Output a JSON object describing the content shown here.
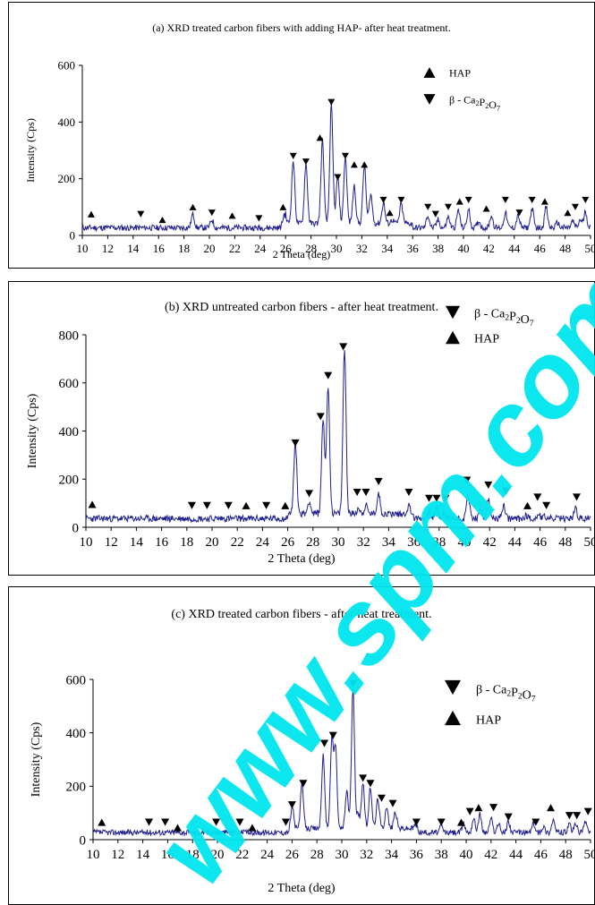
{
  "chart_data": [
    {
      "type": "line",
      "title": "(a) XRD treated carbon fibers with adding HAP- after heat treatment.",
      "xlabel": "2 Theta (deg)",
      "ylabel": "Intensity (Cps)",
      "xlim": [
        10,
        50
      ],
      "ylim": [
        0,
        600
      ],
      "xticks": [
        "10",
        "12",
        "14",
        "16",
        "18",
        "20",
        "22",
        "24",
        "26",
        "28",
        "30",
        "32",
        "34",
        "36",
        "38",
        "40",
        "42",
        "44",
        "46",
        "48",
        "50"
      ],
      "yticks": [
        "0",
        "200",
        "400",
        "600"
      ],
      "legend": {
        "placement": "top-right",
        "entries": [
          {
            "marker": "up",
            "label": "HAP"
          },
          {
            "marker": "down",
            "label": "β - Ca₂P₂O₇"
          }
        ]
      },
      "color": "#1f1f8f",
      "peaks": [
        [
          18.7,
          75
        ],
        [
          20.2,
          55
        ],
        [
          25.9,
          75
        ],
        [
          26.6,
          250
        ],
        [
          27.6,
          240
        ],
        [
          28.9,
          320
        ],
        [
          29.6,
          445
        ],
        [
          30.1,
          190
        ],
        [
          30.7,
          260
        ],
        [
          31.4,
          160
        ],
        [
          32.2,
          230
        ],
        [
          32.7,
          130
        ],
        [
          33.7,
          100
        ],
        [
          34.4,
          40
        ],
        [
          35.1,
          95
        ],
        [
          37.2,
          70
        ],
        [
          38.0,
          55
        ],
        [
          38.8,
          65
        ],
        [
          39.6,
          90
        ],
        [
          40.4,
          90
        ],
        [
          41.2,
          50
        ],
        [
          42.2,
          70
        ],
        [
          43.3,
          80
        ],
        [
          44.3,
          70
        ],
        [
          45.4,
          95
        ],
        [
          46.5,
          100
        ],
        [
          47.4,
          45
        ],
        [
          48.6,
          50
        ],
        [
          49.2,
          55
        ],
        [
          49.6,
          85
        ]
      ],
      "markers": [
        {
          "x": 10.7,
          "y": 75,
          "m": "up"
        },
        {
          "x": 14.6,
          "y": 75,
          "m": "down"
        },
        {
          "x": 16.3,
          "y": 55,
          "m": "up"
        },
        {
          "x": 18.7,
          "y": 100,
          "m": "up"
        },
        {
          "x": 20.2,
          "y": 80,
          "m": "down"
        },
        {
          "x": 21.8,
          "y": 70,
          "m": "up"
        },
        {
          "x": 23.9,
          "y": 60,
          "m": "down"
        },
        {
          "x": 25.8,
          "y": 100,
          "m": "up"
        },
        {
          "x": 26.6,
          "y": 280,
          "m": "down"
        },
        {
          "x": 27.6,
          "y": 260,
          "m": "down"
        },
        {
          "x": 28.7,
          "y": 345,
          "m": "up"
        },
        {
          "x": 29.6,
          "y": 470,
          "m": "down"
        },
        {
          "x": 30.1,
          "y": 205,
          "m": "down"
        },
        {
          "x": 30.7,
          "y": 280,
          "m": "down"
        },
        {
          "x": 31.4,
          "y": 250,
          "m": "up"
        },
        {
          "x": 32.2,
          "y": 250,
          "m": "up"
        },
        {
          "x": 33.7,
          "y": 125,
          "m": "down"
        },
        {
          "x": 34.2,
          "y": 80,
          "m": "up"
        },
        {
          "x": 35.1,
          "y": 125,
          "m": "down"
        },
        {
          "x": 37.2,
          "y": 100,
          "m": "down"
        },
        {
          "x": 37.8,
          "y": 75,
          "m": "down"
        },
        {
          "x": 38.8,
          "y": 100,
          "m": "down"
        },
        {
          "x": 39.7,
          "y": 120,
          "m": "up"
        },
        {
          "x": 40.4,
          "y": 125,
          "m": "down"
        },
        {
          "x": 41.8,
          "y": 95,
          "m": "up"
        },
        {
          "x": 43.3,
          "y": 125,
          "m": "down"
        },
        {
          "x": 44.4,
          "y": 80,
          "m": "down"
        },
        {
          "x": 45.4,
          "y": 125,
          "m": "down"
        },
        {
          "x": 46.4,
          "y": 120,
          "m": "up"
        },
        {
          "x": 48.2,
          "y": 80,
          "m": "up"
        },
        {
          "x": 48.8,
          "y": 100,
          "m": "down"
        },
        {
          "x": 49.6,
          "y": 125,
          "m": "down"
        }
      ]
    },
    {
      "type": "line",
      "title": "(b) XRD untreated carbon fibers - after heat treatment.",
      "xlabel": "2 Theta (deg)",
      "ylabel": "Intensity (Cps)",
      "xlim": [
        10,
        50
      ],
      "ylim": [
        0,
        800
      ],
      "xticks": [
        "10",
        "12",
        "14",
        "16",
        "18",
        "20",
        "22",
        "24",
        "26",
        "28",
        "30",
        "32",
        "34",
        "36",
        "38",
        "40",
        "42",
        "44",
        "46",
        "48",
        "50"
      ],
      "yticks": [
        "0",
        "200",
        "400",
        "600",
        "800"
      ],
      "legend": {
        "placement": "top-right",
        "entries": [
          {
            "marker": "down",
            "label": "β - Ca₂P₂O₇"
          },
          {
            "marker": "up",
            "label": "HAP"
          }
        ]
      },
      "color": "#1f1f8f",
      "peaks": [
        [
          26.6,
          330
        ],
        [
          27.7,
          90
        ],
        [
          28.8,
          430
        ],
        [
          29.2,
          570
        ],
        [
          30.5,
          720
        ],
        [
          31.6,
          60
        ],
        [
          32.2,
          70
        ],
        [
          33.2,
          120
        ],
        [
          35.6,
          70
        ],
        [
          37.2,
          70
        ],
        [
          37.8,
          80
        ],
        [
          38.4,
          60
        ],
        [
          40.3,
          140
        ],
        [
          41.3,
          70
        ],
        [
          41.9,
          115
        ],
        [
          43.1,
          90
        ],
        [
          44.9,
          50
        ],
        [
          45.9,
          55
        ],
        [
          46.4,
          45
        ],
        [
          48.8,
          80
        ]
      ],
      "markers": [
        {
          "x": 10.5,
          "y": 95,
          "m": "up"
        },
        {
          "x": 18.4,
          "y": 90,
          "m": "down"
        },
        {
          "x": 19.6,
          "y": 90,
          "m": "down"
        },
        {
          "x": 21.3,
          "y": 90,
          "m": "down"
        },
        {
          "x": 22.7,
          "y": 90,
          "m": "up"
        },
        {
          "x": 24.3,
          "y": 90,
          "m": "down"
        },
        {
          "x": 25.8,
          "y": 90,
          "m": "up"
        },
        {
          "x": 26.6,
          "y": 350,
          "m": "down"
        },
        {
          "x": 27.7,
          "y": 140,
          "m": "down"
        },
        {
          "x": 28.6,
          "y": 460,
          "m": "down"
        },
        {
          "x": 29.2,
          "y": 630,
          "m": "down"
        },
        {
          "x": 30.4,
          "y": 750,
          "m": "down"
        },
        {
          "x": 31.5,
          "y": 145,
          "m": "down"
        },
        {
          "x": 32.2,
          "y": 145,
          "m": "down"
        },
        {
          "x": 33.2,
          "y": 190,
          "m": "down"
        },
        {
          "x": 35.6,
          "y": 145,
          "m": "down"
        },
        {
          "x": 37.2,
          "y": 120,
          "m": "down"
        },
        {
          "x": 37.8,
          "y": 120,
          "m": "down"
        },
        {
          "x": 38.5,
          "y": 120,
          "m": "down"
        },
        {
          "x": 40.2,
          "y": 195,
          "m": "down"
        },
        {
          "x": 41.9,
          "y": 175,
          "m": "down"
        },
        {
          "x": 43.3,
          "y": 150,
          "m": "down"
        },
        {
          "x": 45.0,
          "y": 90,
          "m": "up"
        },
        {
          "x": 45.8,
          "y": 125,
          "m": "down"
        },
        {
          "x": 46.5,
          "y": 90,
          "m": "down"
        },
        {
          "x": 48.9,
          "y": 125,
          "m": "down"
        }
      ]
    },
    {
      "type": "line",
      "title": "(c) XRD treated carbon fibers - after heat treatment.",
      "xlabel": "2 Theta (deg)",
      "ylabel": "Intensity (Cps)",
      "xlim": [
        10,
        50
      ],
      "ylim": [
        0,
        600
      ],
      "xticks": [
        "10",
        "12",
        "14",
        "16",
        "18",
        "20",
        "22",
        "24",
        "26",
        "28",
        "30",
        "32",
        "34",
        "36",
        "38",
        "40",
        "42",
        "44",
        "46",
        "48",
        "50"
      ],
      "yticks": [
        "0",
        "200",
        "400",
        "600"
      ],
      "legend": {
        "placement": "top-right",
        "entries": [
          {
            "marker": "down",
            "label": "β - Ca₂P₂O₇"
          },
          {
            "marker": "up",
            "label": "HAP"
          }
        ]
      },
      "color": "#1f1f8f",
      "peaks": [
        [
          26.0,
          115
        ],
        [
          26.8,
          190
        ],
        [
          28.5,
          300
        ],
        [
          29.2,
          360
        ],
        [
          29.5,
          330
        ],
        [
          29.7,
          20
        ],
        [
          30.4,
          170
        ],
        [
          30.9,
          550
        ],
        [
          31.3,
          80
        ],
        [
          31.7,
          200
        ],
        [
          32.3,
          180
        ],
        [
          32.9,
          140
        ],
        [
          33.6,
          110
        ],
        [
          34.3,
          90
        ],
        [
          36.0,
          50
        ],
        [
          38.0,
          50
        ],
        [
          39.8,
          60
        ],
        [
          40.6,
          80
        ],
        [
          41.1,
          95
        ],
        [
          42.0,
          80
        ],
        [
          42.6,
          60
        ],
        [
          43.4,
          70
        ],
        [
          45.4,
          60
        ],
        [
          46.2,
          50
        ],
        [
          47.0,
          75
        ],
        [
          48.3,
          55
        ],
        [
          48.8,
          60
        ],
        [
          49.6,
          70
        ]
      ],
      "markers": [
        {
          "x": 10.7,
          "y": 65,
          "m": "up"
        },
        {
          "x": 14.5,
          "y": 65,
          "m": "down"
        },
        {
          "x": 15.8,
          "y": 65,
          "m": "down"
        },
        {
          "x": 16.8,
          "y": 45,
          "m": "up"
        },
        {
          "x": 19.9,
          "y": 65,
          "m": "down"
        },
        {
          "x": 21.8,
          "y": 65,
          "m": "down"
        },
        {
          "x": 22.8,
          "y": 45,
          "m": "up"
        },
        {
          "x": 25.5,
          "y": 65,
          "m": "down"
        },
        {
          "x": 26.0,
          "y": 130,
          "m": "down"
        },
        {
          "x": 26.9,
          "y": 210,
          "m": "down"
        },
        {
          "x": 28.6,
          "y": 360,
          "m": "down"
        },
        {
          "x": 29.3,
          "y": 390,
          "m": "down"
        },
        {
          "x": 30.9,
          "y": 585,
          "m": "down"
        },
        {
          "x": 31.7,
          "y": 230,
          "m": "down"
        },
        {
          "x": 32.3,
          "y": 210,
          "m": "down"
        },
        {
          "x": 33.2,
          "y": 155,
          "m": "down"
        },
        {
          "x": 34.1,
          "y": 135,
          "m": "down"
        },
        {
          "x": 36.0,
          "y": 65,
          "m": "down"
        },
        {
          "x": 38.0,
          "y": 65,
          "m": "down"
        },
        {
          "x": 39.6,
          "y": 65,
          "m": "up"
        },
        {
          "x": 40.3,
          "y": 105,
          "m": "down"
        },
        {
          "x": 41.0,
          "y": 120,
          "m": "up"
        },
        {
          "x": 42.2,
          "y": 120,
          "m": "down"
        },
        {
          "x": 43.4,
          "y": 85,
          "m": "down"
        },
        {
          "x": 45.6,
          "y": 65,
          "m": "down"
        },
        {
          "x": 46.8,
          "y": 120,
          "m": "up"
        },
        {
          "x": 48.3,
          "y": 90,
          "m": "down"
        },
        {
          "x": 48.9,
          "y": 90,
          "m": "down"
        },
        {
          "x": 49.8,
          "y": 105,
          "m": "down"
        }
      ]
    }
  ],
  "watermark": {
    "text": "www.spm.com.cn",
    "color": "#00e5ef"
  }
}
